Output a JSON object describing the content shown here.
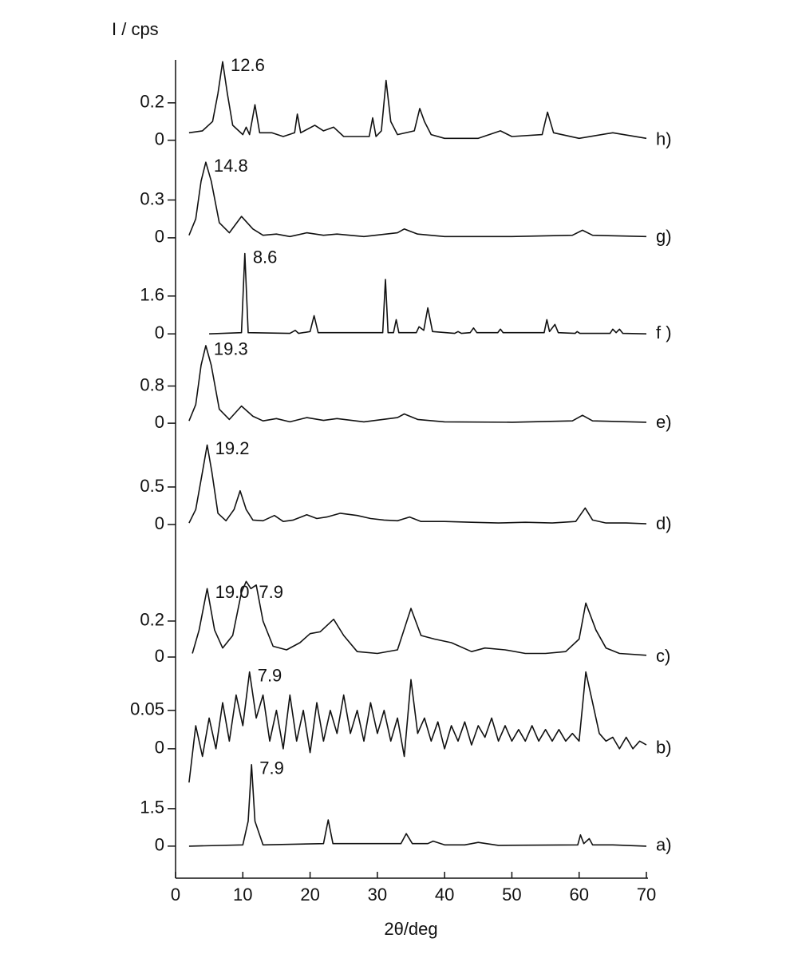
{
  "chart_data": {
    "type": "line",
    "ylabel": "I / cps",
    "xlabel": "2θ/deg",
    "color": "#111111",
    "xlim": [
      0,
      70
    ],
    "xticks": [
      0,
      10,
      20,
      30,
      40,
      50,
      60,
      70
    ],
    "panels": [
      {
        "label": "h)",
        "ylim": [
          -0.04,
          0.43
        ],
        "yticks": [
          0,
          0.2
        ],
        "x": [
          2,
          4,
          5.5,
          6.3,
          7.0,
          7.7,
          8.5,
          10,
          10.5,
          11,
          11.8,
          12.5,
          14.3,
          16,
          17.7,
          18.1,
          18.6,
          20.7,
          22,
          23.5,
          25,
          28.8,
          29.3,
          29.8,
          30.6,
          31.3,
          32.0,
          33,
          35.5,
          36.3,
          37,
          38,
          40,
          45,
          48.3,
          50,
          54.5,
          55.3,
          56.2,
          60,
          65,
          70
        ],
        "values": [
          0.04,
          0.05,
          0.1,
          0.25,
          0.42,
          0.25,
          0.08,
          0.03,
          0.07,
          0.03,
          0.19,
          0.04,
          0.04,
          0.02,
          0.04,
          0.14,
          0.04,
          0.08,
          0.05,
          0.07,
          0.02,
          0.02,
          0.12,
          0.02,
          0.05,
          0.32,
          0.1,
          0.03,
          0.05,
          0.17,
          0.1,
          0.03,
          0.01,
          0.01,
          0.05,
          0.02,
          0.03,
          0.15,
          0.04,
          0.01,
          0.04,
          0.01
        ],
        "annotations": [
          {
            "text": "12.6",
            "x": 7.0
          }
        ]
      },
      {
        "label": "g)",
        "ylim": [
          -0.045,
          0.62
        ],
        "yticks": [
          0,
          0.3
        ],
        "x": [
          2,
          3,
          3.8,
          4.5,
          5.3,
          6.5,
          8,
          9.8,
          11.5,
          13,
          15,
          17,
          19.5,
          22,
          24,
          28,
          33,
          34,
          36,
          40,
          50,
          59,
          60.5,
          62,
          70
        ],
        "values": [
          0.02,
          0.15,
          0.45,
          0.6,
          0.45,
          0.12,
          0.04,
          0.17,
          0.07,
          0.02,
          0.03,
          0.01,
          0.04,
          0.02,
          0.03,
          0.01,
          0.04,
          0.07,
          0.03,
          0.01,
          0.01,
          0.02,
          0.06,
          0.02,
          0.01
        ],
        "annotations": [
          {
            "text": "14.8",
            "x": 4.5
          }
        ]
      },
      {
        "label": "f )",
        "ylim": [
          -0.33,
          3.45
        ],
        "yticks": [
          0,
          1.6
        ],
        "x": [
          5,
          9.8,
          10.3,
          10.8,
          17,
          17.8,
          18.3,
          20.0,
          20.6,
          21.2,
          30.8,
          31.2,
          31.6,
          32.4,
          32.8,
          33.2,
          35.8,
          36.2,
          36.9,
          37.5,
          38.2,
          41.5,
          42,
          42.5,
          43.8,
          44.3,
          44.8,
          47.9,
          48.3,
          48.7,
          54.8,
          55.2,
          55.6,
          56.4,
          56.9,
          59.4,
          59.7,
          60.1,
          64.6,
          65,
          65.5,
          66,
          66.5,
          70
        ],
        "values": [
          0,
          0.05,
          3.4,
          0.05,
          0.02,
          0.15,
          0.02,
          0.1,
          0.77,
          0.05,
          0.05,
          2.3,
          0.05,
          0.05,
          0.6,
          0.05,
          0.05,
          0.3,
          0.15,
          1.1,
          0.1,
          0.02,
          0.1,
          0.02,
          0.05,
          0.25,
          0.05,
          0.05,
          0.2,
          0.05,
          0.05,
          0.6,
          0.1,
          0.4,
          0.05,
          0.02,
          0.1,
          0.02,
          0.02,
          0.2,
          0.05,
          0.2,
          0.02,
          0
        ],
        "annotations": [
          {
            "text": "8.6",
            "x": 10.3
          }
        ]
      },
      {
        "label": "e)",
        "ylim": [
          -0.17,
          1.72
        ],
        "yticks": [
          0,
          0.8
        ],
        "x": [
          2,
          3,
          3.8,
          4.5,
          5.3,
          6.5,
          8,
          9.8,
          11.5,
          13,
          15,
          17,
          19.5,
          22,
          24,
          28,
          33,
          34,
          36,
          40,
          50,
          59,
          60.5,
          62,
          70
        ],
        "values": [
          0.05,
          0.4,
          1.25,
          1.67,
          1.25,
          0.3,
          0.08,
          0.37,
          0.15,
          0.05,
          0.1,
          0.03,
          0.12,
          0.06,
          0.1,
          0.03,
          0.12,
          0.2,
          0.08,
          0.03,
          0.02,
          0.05,
          0.17,
          0.05,
          0.02
        ],
        "annotations": [
          {
            "text": "19.3",
            "x": 4.5
          }
        ]
      },
      {
        "label": "d)",
        "ylim": [
          -0.085,
          1.085
        ],
        "yticks": [
          0,
          0.5
        ],
        "x": [
          2,
          3,
          4,
          4.7,
          5.4,
          6.3,
          7.5,
          8.7,
          9.6,
          10.5,
          11.5,
          13,
          14.7,
          16,
          17.5,
          19.5,
          21,
          22.5,
          24.5,
          27,
          29,
          31,
          33,
          34.8,
          36.5,
          40,
          44,
          48,
          52,
          56,
          59.5,
          60.9,
          62,
          64,
          67,
          70
        ],
        "values": [
          0.02,
          0.2,
          0.7,
          1.06,
          0.7,
          0.15,
          0.05,
          0.2,
          0.45,
          0.2,
          0.06,
          0.05,
          0.12,
          0.04,
          0.06,
          0.13,
          0.08,
          0.1,
          0.15,
          0.12,
          0.08,
          0.06,
          0.05,
          0.1,
          0.04,
          0.04,
          0.03,
          0.02,
          0.03,
          0.02,
          0.04,
          0.22,
          0.06,
          0.02,
          0.02,
          0.01
        ],
        "annotations": [
          {
            "text": "19.2",
            "x": 4.7
          }
        ]
      },
      {
        "label": "c)",
        "ylim": [
          -0.031,
          0.59
        ],
        "yticks": [
          0,
          0.2
        ],
        "x": [
          2.5,
          3.5,
          4.7,
          5.8,
          7,
          8.5,
          9.8,
          10.5,
          11.2,
          12,
          13,
          14.5,
          16.5,
          18.5,
          20,
          21.5,
          23.5,
          25,
          27,
          30,
          33,
          35,
          36.5,
          38.5,
          41,
          44,
          46,
          49,
          52,
          55,
          58,
          60,
          61,
          62.5,
          64,
          66,
          70
        ],
        "values": [
          0.02,
          0.15,
          0.38,
          0.15,
          0.05,
          0.12,
          0.36,
          0.42,
          0.38,
          0.4,
          0.2,
          0.06,
          0.04,
          0.08,
          0.13,
          0.14,
          0.21,
          0.12,
          0.03,
          0.02,
          0.04,
          0.27,
          0.12,
          0.1,
          0.08,
          0.03,
          0.05,
          0.04,
          0.02,
          0.02,
          0.03,
          0.1,
          0.3,
          0.15,
          0.05,
          0.02,
          0.01
        ],
        "annotations": [
          {
            "text": "19.0",
            "x": 4.7
          },
          {
            "text": "7.9",
            "x": 11.2
          }
        ]
      },
      {
        "label": "b)",
        "ylim": [
          -0.049,
          0.107
        ],
        "yticks": [
          0,
          0.05
        ],
        "x": [
          2,
          3,
          4,
          5,
          6,
          7,
          8,
          9,
          10,
          11,
          12,
          13,
          14,
          15,
          16,
          17,
          18,
          19,
          20,
          21,
          22,
          23,
          24,
          25,
          26,
          27,
          28,
          29,
          30,
          31,
          32,
          33,
          34,
          35,
          36,
          37,
          38,
          39,
          40,
          41,
          42,
          43,
          44,
          45,
          46,
          47,
          48,
          49,
          50,
          51,
          52,
          53,
          54,
          55,
          56,
          57,
          58,
          59,
          60,
          61,
          62,
          63,
          64,
          65,
          66,
          67,
          68,
          69,
          70
        ],
        "values": [
          -0.044,
          0.03,
          -0.01,
          0.04,
          0.0,
          0.06,
          0.01,
          0.07,
          0.03,
          0.1,
          0.04,
          0.07,
          0.01,
          0.05,
          0.0,
          0.07,
          0.01,
          0.05,
          -0.005,
          0.06,
          0.01,
          0.05,
          0.02,
          0.07,
          0.02,
          0.05,
          0.01,
          0.06,
          0.02,
          0.05,
          0.01,
          0.04,
          -0.01,
          0.09,
          0.02,
          0.04,
          0.01,
          0.035,
          0.0,
          0.03,
          0.01,
          0.035,
          0.005,
          0.03,
          0.015,
          0.04,
          0.01,
          0.03,
          0.01,
          0.025,
          0.01,
          0.03,
          0.01,
          0.025,
          0.01,
          0.025,
          0.01,
          0.02,
          0.01,
          0.1,
          0.06,
          0.02,
          0.01,
          0.015,
          0.0,
          0.015,
          0.0,
          0.01,
          0.005
        ],
        "annotations": [
          {
            "text": "7.9",
            "x": 11
          }
        ]
      },
      {
        "label": "a)",
        "ylim": [
          -0.26,
          3.35
        ],
        "yticks": [
          0,
          1.5
        ],
        "x": [
          2,
          10,
          10.8,
          11.3,
          11.8,
          13,
          22.0,
          22.7,
          23.4,
          33.5,
          34.3,
          35.2,
          37.5,
          38.3,
          40,
          43,
          45,
          48,
          59.8,
          60.2,
          60.7,
          61.5,
          62,
          65,
          70
        ],
        "values": [
          0,
          0.05,
          1,
          3.26,
          1,
          0.05,
          0.1,
          1.05,
          0.1,
          0.1,
          0.5,
          0.1,
          0.1,
          0.2,
          0.05,
          0.05,
          0.15,
          0.03,
          0.05,
          0.45,
          0.1,
          0.3,
          0.05,
          0.05,
          0
        ],
        "annotations": [
          {
            "text": "7.9",
            "x": 11.3
          }
        ]
      }
    ]
  }
}
